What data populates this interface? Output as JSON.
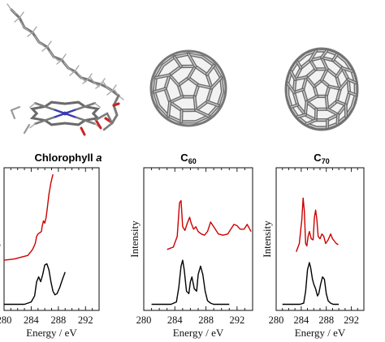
{
  "panels": [
    {
      "title_main": "Chlorophyll",
      "title_ital": "a",
      "molecule_icon": "chlorophyll-a-ball-and-stick-model",
      "chart_data": {
        "type": "line",
        "xlabel": "Energy / eV",
        "ylabel": "Intensity",
        "xlim": [
          280,
          294
        ],
        "xticks": [
          280,
          284,
          288,
          292
        ],
        "tick_labels": [
          "280",
          "284",
          "288",
          "292"
        ],
        "series": [
          {
            "color": "#cc0000",
            "x": [
              280.0,
              281.5,
              283.5,
              284.2,
              284.6,
              284.8,
              285.0,
              285.5,
              285.6,
              285.8,
              286.0,
              286.2,
              286.4,
              286.6,
              286.9,
              287.2
            ],
            "y": [
              0.38,
              0.39,
              0.42,
              0.47,
              0.52,
              0.58,
              0.6,
              0.62,
              0.66,
              0.71,
              0.69,
              0.74,
              0.83,
              0.93,
              1.03,
              1.1
            ]
          },
          {
            "color": "#000000",
            "x": [
              280.0,
              283.0,
              284.0,
              284.5,
              284.8,
              285.1,
              285.4,
              285.7,
              286.0,
              286.3,
              286.6,
              286.9,
              287.2,
              287.5,
              287.8,
              288.2,
              288.6,
              289.0
            ],
            "y": [
              0.01,
              0.01,
              0.03,
              0.08,
              0.2,
              0.24,
              0.2,
              0.26,
              0.34,
              0.35,
              0.3,
              0.2,
              0.12,
              0.09,
              0.1,
              0.15,
              0.22,
              0.28
            ]
          }
        ]
      }
    },
    {
      "title_main": "C",
      "title_sub": "60",
      "molecule_icon": "c60-fullerene-model",
      "chart_data": {
        "type": "line",
        "xlabel": "Energy / eV",
        "ylabel": "Intensity",
        "xlim": [
          280,
          294
        ],
        "xticks": [
          280,
          284,
          288,
          292
        ],
        "tick_labels": [
          "280",
          "284",
          "288",
          "292"
        ],
        "series": [
          {
            "color": "#cc0000",
            "x": [
              283.0,
              283.8,
              284.3,
              284.6,
              284.8,
              285.0,
              285.3,
              285.6,
              285.9,
              286.1,
              286.4,
              286.7,
              287.0,
              287.4,
              287.8,
              288.2,
              288.6,
              289.0,
              289.6,
              290.2,
              290.8,
              291.2,
              291.6,
              292.0,
              292.4,
              292.9,
              293.3,
              293.8
            ],
            "y": [
              0.47,
              0.49,
              0.58,
              0.86,
              0.88,
              0.66,
              0.63,
              0.69,
              0.74,
              0.69,
              0.64,
              0.66,
              0.62,
              0.6,
              0.59,
              0.62,
              0.7,
              0.66,
              0.6,
              0.59,
              0.6,
              0.64,
              0.68,
              0.67,
              0.64,
              0.64,
              0.68,
              0.62
            ]
          },
          {
            "color": "#000000",
            "x": [
              281.0,
              283.5,
              284.2,
              284.5,
              284.8,
              285.0,
              285.2,
              285.5,
              285.8,
              286.0,
              286.2,
              286.5,
              286.8,
              287.0,
              287.3,
              287.6,
              287.9,
              288.2,
              288.6,
              289.0,
              289.5,
              291.0
            ],
            "y": [
              0.01,
              0.01,
              0.03,
              0.15,
              0.33,
              0.38,
              0.3,
              0.12,
              0.1,
              0.2,
              0.24,
              0.14,
              0.12,
              0.26,
              0.33,
              0.26,
              0.12,
              0.04,
              0.02,
              0.01,
              0.01,
              0.01
            ]
          }
        ]
      }
    },
    {
      "title_main": "C",
      "title_sub": "70",
      "molecule_icon": "c70-fullerene-model",
      "chart_data": {
        "type": "line",
        "xlabel": "Energy / eV",
        "ylabel": "Intensity",
        "xlim": [
          280,
          294
        ],
        "xticks": [
          280,
          284,
          288,
          292
        ],
        "tick_labels": [
          "280",
          "284",
          "288",
          "292"
        ],
        "series": [
          {
            "color": "#cc0000",
            "x": [
              283.2,
              283.7,
              284.1,
              284.3,
              284.5,
              284.7,
              284.9,
              285.1,
              285.3,
              285.6,
              285.9,
              286.1,
              286.3,
              286.5,
              286.7,
              287.0,
              287.3,
              287.6,
              287.9,
              288.3,
              288.7,
              289.0,
              289.3,
              289.6,
              289.9
            ],
            "y": [
              0.45,
              0.52,
              0.72,
              0.9,
              0.79,
              0.52,
              0.5,
              0.58,
              0.62,
              0.56,
              0.55,
              0.74,
              0.8,
              0.72,
              0.58,
              0.56,
              0.6,
              0.58,
              0.52,
              0.55,
              0.6,
              0.56,
              0.54,
              0.52,
              0.51
            ]
          },
          {
            "color": "#000000",
            "x": [
              281.0,
              283.8,
              284.4,
              284.7,
              285.0,
              285.3,
              285.5,
              285.8,
              286.0,
              286.3,
              286.6,
              286.8,
              287.1,
              287.4,
              287.7,
              288.0,
              288.3,
              288.7,
              289.1,
              290.0
            ],
            "y": [
              0.01,
              0.01,
              0.02,
              0.12,
              0.3,
              0.36,
              0.32,
              0.22,
              0.18,
              0.14,
              0.08,
              0.1,
              0.18,
              0.24,
              0.22,
              0.1,
              0.04,
              0.02,
              0.01,
              0.01
            ]
          }
        ]
      }
    }
  ]
}
